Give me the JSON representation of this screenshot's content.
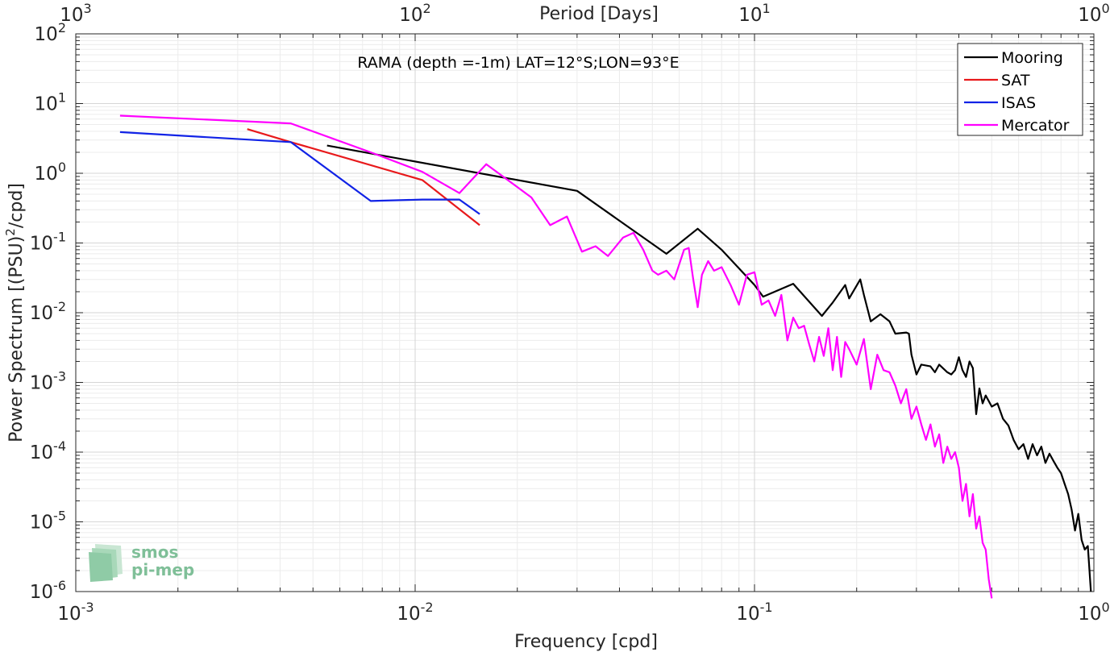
{
  "chart_data": {
    "type": "line",
    "annotation": "RAMA (depth =-1m) LAT=12°S;LON=93°E",
    "xlabel": "Frequency [cpd]",
    "ylabel": "Power Spectrum [(PSU)",
    "ylabel_sup": "2",
    "ylabel_tail": "/cpd]",
    "top_xlabel": "Period [Days]",
    "xscale": "log",
    "yscale": "log",
    "xlim": [
      0.001,
      1
    ],
    "ylim": [
      1e-06,
      100
    ],
    "grid": true,
    "minor_grid": true,
    "legend_position": "top-right",
    "x_ticks": [
      {
        "value": 0.001,
        "base": "10",
        "exp": "-3"
      },
      {
        "value": 0.01,
        "base": "10",
        "exp": "-2"
      },
      {
        "value": 0.1,
        "base": "10",
        "exp": "-1"
      },
      {
        "value": 1,
        "base": "10",
        "exp": "0"
      }
    ],
    "top_ticks": [
      {
        "freq": 0.001,
        "base": "10",
        "exp": "3"
      },
      {
        "freq": 0.01,
        "base": "10",
        "exp": "2"
      },
      {
        "freq": 0.1,
        "base": "10",
        "exp": "1"
      },
      {
        "freq": 1,
        "base": "10",
        "exp": "0"
      }
    ],
    "y_ticks": [
      {
        "value": 100,
        "base": "10",
        "exp": "2"
      },
      {
        "value": 10,
        "base": "10",
        "exp": "1"
      },
      {
        "value": 1,
        "base": "10",
        "exp": "0"
      },
      {
        "value": 0.1,
        "base": "10",
        "exp": "-1"
      },
      {
        "value": 0.01,
        "base": "10",
        "exp": "-2"
      },
      {
        "value": 0.001,
        "base": "10",
        "exp": "-3"
      },
      {
        "value": 0.0001,
        "base": "10",
        "exp": "-4"
      },
      {
        "value": 1e-05,
        "base": "10",
        "exp": "-5"
      },
      {
        "value": 1e-06,
        "base": "10",
        "exp": "-6"
      }
    ],
    "series": [
      {
        "name": "Mooring",
        "color": "#000000",
        "x": [
          0.0055,
          0.03,
          0.055,
          0.068,
          0.08,
          0.1,
          0.106,
          0.13,
          0.158,
          0.17,
          0.185,
          0.19,
          0.205,
          0.21,
          0.22,
          0.235,
          0.25,
          0.26,
          0.28,
          0.285,
          0.29,
          0.3,
          0.31,
          0.33,
          0.34,
          0.35,
          0.37,
          0.38,
          0.39,
          0.4,
          0.41,
          0.42,
          0.43,
          0.44,
          0.45,
          0.46,
          0.47,
          0.48,
          0.5,
          0.52,
          0.54,
          0.56,
          0.58,
          0.6,
          0.62,
          0.64,
          0.66,
          0.68,
          0.7,
          0.72,
          0.74,
          0.76,
          0.78,
          0.8,
          0.82,
          0.84,
          0.86,
          0.88,
          0.9,
          0.92,
          0.94,
          0.96,
          0.98
        ],
        "y": [
          2.5,
          0.56,
          0.07,
          0.16,
          0.08,
          0.025,
          0.017,
          0.026,
          0.009,
          0.014,
          0.025,
          0.016,
          0.03,
          0.018,
          0.0075,
          0.0095,
          0.0075,
          0.005,
          0.0052,
          0.005,
          0.0025,
          0.0013,
          0.0018,
          0.0017,
          0.0014,
          0.0018,
          0.0014,
          0.0013,
          0.0015,
          0.0023,
          0.0015,
          0.0012,
          0.002,
          0.0016,
          0.00035,
          0.00082,
          0.0005,
          0.00065,
          0.00045,
          0.0005,
          0.0003,
          0.00024,
          0.00015,
          0.00011,
          0.00013,
          8e-05,
          0.00013,
          9e-05,
          0.00012,
          7e-05,
          9.5e-05,
          7.5e-05,
          6e-05,
          5e-05,
          3.5e-05,
          2.5e-05,
          1.5e-05,
          7.5e-06,
          1.3e-05,
          5.5e-06,
          4e-06,
          4.5e-06,
          1e-06
        ]
      },
      {
        "name": "SAT",
        "color": "#e8191b",
        "x": [
          0.0032,
          0.0043,
          0.0105,
          0.0155
        ],
        "y": [
          4.3,
          2.8,
          0.8,
          0.18
        ]
      },
      {
        "name": "ISAS",
        "color": "#1123e6",
        "x": [
          0.00135,
          0.0043,
          0.0074,
          0.0105,
          0.0135,
          0.0155
        ],
        "y": [
          3.9,
          2.8,
          0.4,
          0.42,
          0.42,
          0.26
        ]
      },
      {
        "name": "Mercator",
        "color": "#ff00ff",
        "x": [
          0.00135,
          0.0043,
          0.0074,
          0.0105,
          0.0135,
          0.0162,
          0.022,
          0.025,
          0.028,
          0.031,
          0.034,
          0.037,
          0.041,
          0.044,
          0.047,
          0.05,
          0.052,
          0.055,
          0.058,
          0.062,
          0.064,
          0.066,
          0.068,
          0.07,
          0.073,
          0.076,
          0.08,
          0.085,
          0.09,
          0.095,
          0.1,
          0.105,
          0.11,
          0.115,
          0.12,
          0.125,
          0.13,
          0.135,
          0.14,
          0.145,
          0.15,
          0.155,
          0.16,
          0.165,
          0.17,
          0.175,
          0.18,
          0.185,
          0.19,
          0.2,
          0.21,
          0.22,
          0.23,
          0.24,
          0.25,
          0.26,
          0.27,
          0.28,
          0.29,
          0.3,
          0.31,
          0.32,
          0.33,
          0.34,
          0.35,
          0.36,
          0.37,
          0.38,
          0.39,
          0.4,
          0.41,
          0.42,
          0.43,
          0.44,
          0.45,
          0.46,
          0.47,
          0.48,
          0.49,
          0.5
        ],
        "y": [
          6.7,
          5.2,
          2.0,
          1.05,
          0.52,
          1.35,
          0.45,
          0.18,
          0.24,
          0.075,
          0.09,
          0.065,
          0.12,
          0.14,
          0.08,
          0.04,
          0.035,
          0.04,
          0.03,
          0.08,
          0.085,
          0.03,
          0.012,
          0.035,
          0.055,
          0.04,
          0.045,
          0.025,
          0.013,
          0.035,
          0.038,
          0.013,
          0.015,
          0.009,
          0.018,
          0.004,
          0.0085,
          0.006,
          0.0065,
          0.0035,
          0.002,
          0.0045,
          0.0024,
          0.006,
          0.0015,
          0.0045,
          0.0012,
          0.0038,
          0.003,
          0.0018,
          0.0042,
          0.0008,
          0.0025,
          0.0015,
          0.0014,
          0.0009,
          0.0005,
          0.0008,
          0.0003,
          0.00045,
          0.00025,
          0.00015,
          0.00025,
          0.00012,
          0.00018,
          7e-05,
          0.00012,
          8e-05,
          0.0001,
          6e-05,
          2e-05,
          3.5e-05,
          1.2e-05,
          2.5e-05,
          8e-06,
          1.2e-05,
          5e-06,
          4e-06,
          1.5e-06,
          8e-07
        ]
      }
    ]
  },
  "logo": {
    "line1": "smos",
    "line2": "pi-mep"
  }
}
